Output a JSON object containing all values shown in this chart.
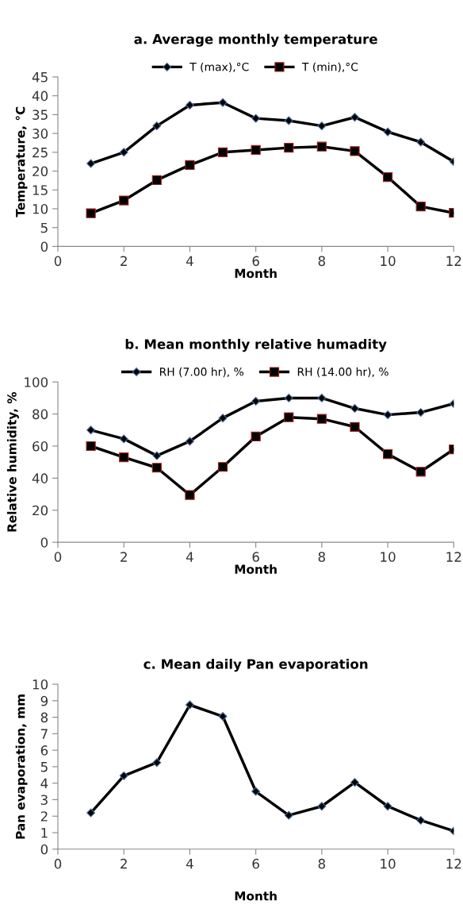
{
  "chart_data": [
    {
      "type": "line",
      "title": "a. Average monthly temperature",
      "xlabel": "Month",
      "ylabel": "Temperature, °C",
      "x": [
        1,
        2,
        3,
        4,
        5,
        6,
        7,
        8,
        9,
        10,
        11,
        12
      ],
      "xlim": [
        0,
        12
      ],
      "xticks": [
        0,
        2,
        4,
        6,
        8,
        10,
        12
      ],
      "ylim": [
        0,
        45
      ],
      "yticks": [
        0,
        5,
        10,
        15,
        20,
        25,
        30,
        35,
        40,
        45
      ],
      "legend": "top",
      "grid": false,
      "series": [
        {
          "name": "T (max),°C",
          "color": "#000000",
          "marker": "diamond",
          "values": [
            22,
            25,
            32,
            37.5,
            38.2,
            34,
            33.4,
            32,
            34.3,
            30.4,
            27.7,
            22.5
          ]
        },
        {
          "name": "T (min),°C",
          "color": "#000000",
          "marker": "square",
          "values": [
            8.8,
            12.2,
            17.6,
            21.6,
            25,
            25.6,
            26.2,
            26.5,
            25.3,
            18.4,
            10.6,
            8.9
          ]
        }
      ]
    },
    {
      "type": "line",
      "title": "b. Mean monthly relative humadity",
      "xlabel": "Month",
      "ylabel": "Relative humidity, %",
      "x": [
        1,
        2,
        3,
        4,
        5,
        6,
        7,
        8,
        9,
        10,
        11,
        12
      ],
      "xlim": [
        0,
        12
      ],
      "xticks": [
        0,
        2,
        4,
        6,
        8,
        10,
        12
      ],
      "ylim": [
        0,
        100
      ],
      "yticks": [
        0,
        20,
        40,
        60,
        80,
        100
      ],
      "legend": "top",
      "grid": false,
      "series": [
        {
          "name": "RH (7.00 hr), %",
          "color": "#000000",
          "marker": "diamond",
          "values": [
            70,
            64.5,
            54,
            63,
            77.5,
            88,
            90,
            90,
            83.5,
            79.5,
            81,
            86.5
          ]
        },
        {
          "name": "RH (14.00 hr), %",
          "color": "#000000",
          "marker": "square",
          "values": [
            60,
            53,
            46.5,
            29.5,
            47,
            66,
            78,
            77,
            72,
            55,
            44,
            58
          ]
        }
      ]
    },
    {
      "type": "line",
      "title": "c. Mean daily Pan evaporation",
      "xlabel": "Month",
      "ylabel": "Pan evaporation, mm",
      "x": [
        1,
        2,
        3,
        4,
        5,
        6,
        7,
        8,
        9,
        10,
        11,
        12
      ],
      "xlim": [
        0,
        12
      ],
      "xticks": [
        0,
        2,
        4,
        6,
        8,
        10,
        12
      ],
      "ylim": [
        0,
        10
      ],
      "yticks": [
        0,
        1,
        2,
        3,
        4,
        5,
        6,
        7,
        8,
        9,
        10
      ],
      "grid": false,
      "series": [
        {
          "color": "#000000",
          "marker": "diamond",
          "values": [
            2.2,
            4.45,
            5.25,
            8.75,
            8.05,
            3.5,
            2.05,
            2.6,
            4.05,
            2.6,
            1.75,
            1.1
          ]
        }
      ]
    }
  ]
}
